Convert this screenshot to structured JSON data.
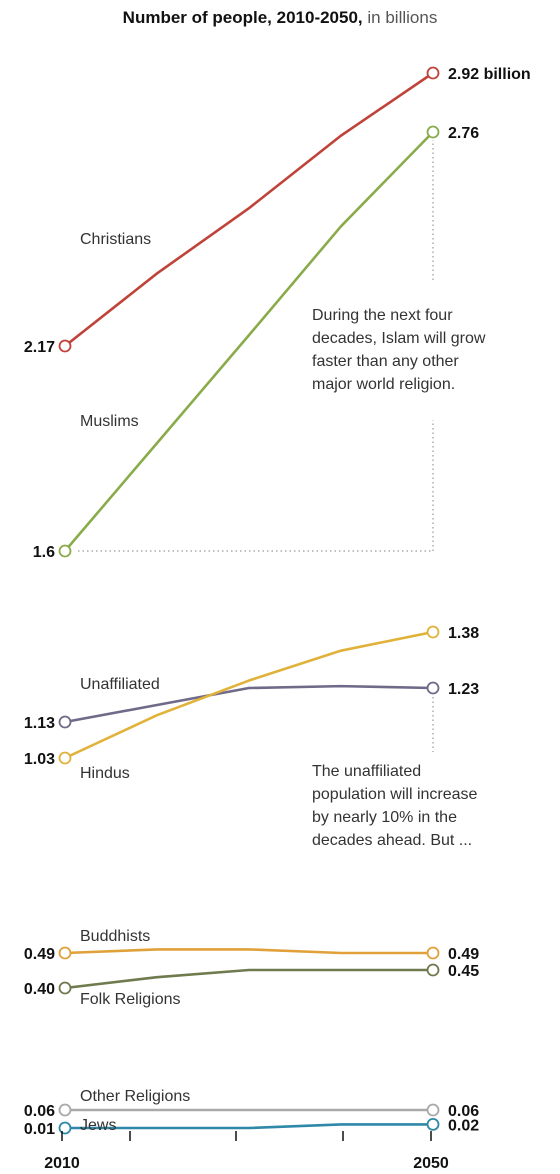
{
  "title": {
    "bold": "Number of people, 2010-2050,",
    "light": "in billions"
  },
  "colors": {
    "Christians": "#c0433a",
    "Muslims": "#8aab4a",
    "Hindus": "#e0b23a",
    "Unaffiliated": "#6e6a88",
    "Buddhists": "#e0a13a",
    "Folk Religions": "#6f7a4e",
    "Other Religions": "#a9a9a9",
    "Jews": "#2f88a8"
  },
  "chart_data": {
    "type": "line",
    "x": [
      2010,
      2020,
      2030,
      2040,
      2050
    ],
    "series": [
      {
        "name": "Christians",
        "values": [
          2.17,
          2.37,
          2.55,
          2.75,
          2.92
        ],
        "start_label": "2.17",
        "end_label": "2.92 billion"
      },
      {
        "name": "Muslims",
        "values": [
          1.6,
          1.9,
          2.2,
          2.5,
          2.76
        ],
        "start_label": "1.6",
        "end_label": "2.76"
      },
      {
        "name": "Unaffiliated",
        "values": [
          1.13,
          1.18,
          1.23,
          1.235,
          1.23
        ],
        "start_label": "1.13",
        "end_label": "1.23"
      },
      {
        "name": "Hindus",
        "values": [
          1.03,
          1.15,
          1.25,
          1.33,
          1.38
        ],
        "start_label": "1.03",
        "end_label": "1.38"
      },
      {
        "name": "Buddhists",
        "values": [
          0.49,
          0.5,
          0.5,
          0.49,
          0.49
        ],
        "start_label": "0.49",
        "end_label": "0.49"
      },
      {
        "name": "Folk Religions",
        "values": [
          0.4,
          0.43,
          0.45,
          0.45,
          0.45
        ],
        "start_label": "0.40",
        "end_label": "0.45"
      },
      {
        "name": "Other Religions",
        "values": [
          0.06,
          0.06,
          0.06,
          0.06,
          0.06
        ],
        "start_label": "0.06",
        "end_label": "0.06"
      },
      {
        "name": "Jews",
        "values": [
          0.01,
          0.01,
          0.01,
          0.02,
          0.02
        ],
        "start_label": "0.01",
        "end_label": "0.02"
      }
    ],
    "xlabels": [
      "2010",
      "2050"
    ],
    "annotations": [
      "During the next four decades, Islam will grow faster than any other major world religion.",
      "The unaffiliated population will increase by nearly 10% in the decades ahead. But ..."
    ]
  },
  "notes": {
    "islam": [
      "During the next four",
      "decades, Islam will grow",
      "faster than any other",
      "major world religion."
    ],
    "unaffiliated": [
      "The unaffiliated",
      "population will increase",
      "by nearly 10% in the",
      "decades ahead. But ..."
    ]
  },
  "axis": {
    "start": "2010",
    "end": "2050"
  }
}
